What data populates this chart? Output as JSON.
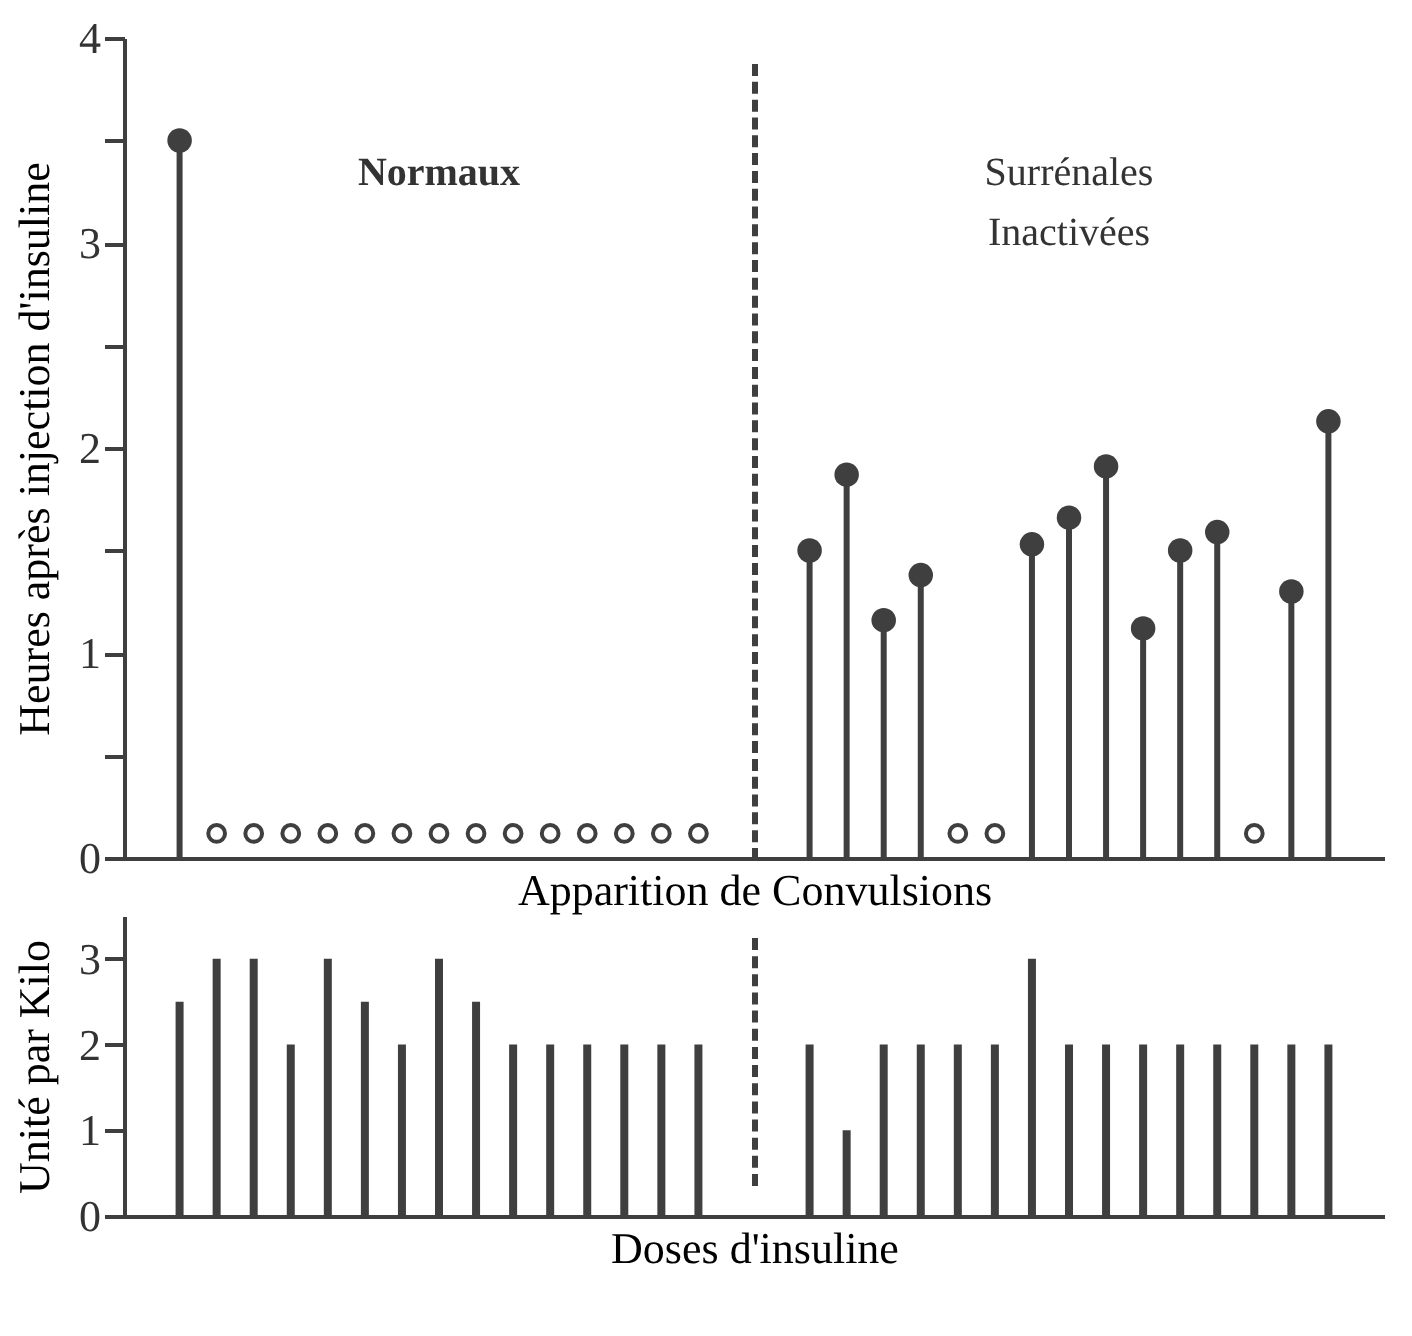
{
  "chart_data": [
    {
      "type": "lollipop",
      "ylabel": "Heures après injection d'insuline",
      "xlabel": "Apparition de Convulsions",
      "categories": [
        null,
        null,
        null,
        null,
        null,
        null,
        null,
        null,
        null,
        null,
        null,
        null,
        null,
        null,
        null,
        null,
        null,
        null,
        null,
        null,
        null,
        null,
        null,
        null,
        null,
        null,
        null,
        null,
        null,
        null,
        null,
        null,
        null,
        null
      ],
      "ylim": [
        0,
        4
      ],
      "yticks": [
        0,
        {
          "value": 0.5,
          "label": null
        },
        1,
        {
          "value": 1.5,
          "label": null
        },
        2,
        {
          "value": 2.5,
          "label": null
        },
        3,
        {
          "value": 3.5,
          "label": null
        },
        4
      ],
      "tick_labels": "y",
      "marker": "circle",
      "series": [
        {
          "color": "#3f3f3f",
          "values": [
            null,
            3.5,
            null,
            null,
            null,
            null,
            null,
            null,
            null,
            null,
            null,
            null,
            null,
            null,
            null,
            null,
            null,
            null,
            1.5,
            1.87,
            1.16,
            1.38,
            null,
            null,
            1.53,
            1.66,
            1.91,
            1.12,
            1.5,
            1.59,
            null,
            1.3,
            2.13,
            null
          ]
        },
        {
          "type": "scatter",
          "color": "#3f3f3f",
          "values": [
            null,
            null,
            0.12,
            0.12,
            0.12,
            0.12,
            0.12,
            0.12,
            0.12,
            0.12,
            0.12,
            0.12,
            0.12,
            0.12,
            0.12,
            0.12,
            null,
            null,
            null,
            null,
            null,
            null,
            0.12,
            0.12,
            null,
            null,
            null,
            null,
            null,
            null,
            0.12,
            null,
            null,
            null
          ]
        }
      ],
      "annotations": [
        "Normaux",
        "Surrénales\nInactivées"
      ]
    },
    {
      "type": "bar",
      "ylabel": "Unité par Kilo",
      "xlabel": "Doses d'insuline",
      "categories": [
        null,
        null,
        null,
        null,
        null,
        null,
        null,
        null,
        null,
        null,
        null,
        null,
        null,
        null,
        null,
        null,
        null,
        null,
        null,
        null,
        null,
        null,
        null,
        null,
        null,
        null,
        null,
        null,
        null,
        null,
        null,
        null,
        null,
        null
      ],
      "ylim": [
        0,
        3.5
      ],
      "yticks": [
        0,
        1,
        2,
        3
      ],
      "tick_labels": "y",
      "series": [
        {
          "color": "#3f3f3f",
          "values": [
            null,
            2.5,
            3,
            3,
            2,
            3,
            2.5,
            2,
            3,
            2.5,
            2,
            2,
            2,
            2,
            2,
            2,
            null,
            null,
            2,
            1,
            2,
            2,
            2,
            2,
            3,
            2,
            2,
            2,
            2,
            2,
            2,
            2,
            2,
            null
          ]
        }
      ]
    }
  ]
}
